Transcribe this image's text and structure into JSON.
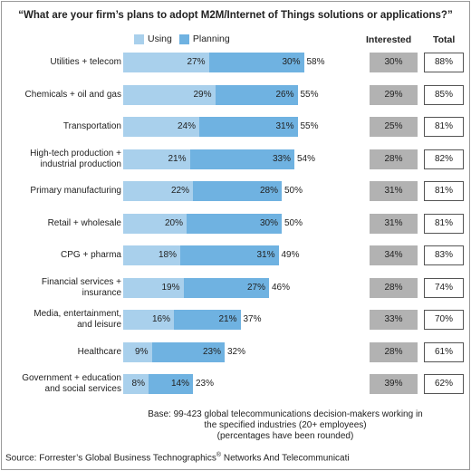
{
  "title": "“What are your firm’s plans to adopt M2M/Internet of Things solutions or applications?”",
  "legend": [
    {
      "label": "Using",
      "color": "#a9d0ec"
    },
    {
      "label": "Planning",
      "color": "#6fb2e1"
    }
  ],
  "columns": {
    "interested": "Interested",
    "total": "Total"
  },
  "chart_data": {
    "type": "bar",
    "stacked": true,
    "orientation": "horizontal",
    "categories": [
      "Utilities + telecom",
      "Chemicals + oil and gas",
      "Transportation",
      "High-tech production + industrial production",
      "Primary manufacturing",
      "Retail + wholesale",
      "CPG + pharma",
      "Financial services + insurance",
      "Media, entertainment, and leisure",
      "Healthcare",
      "Government + education and social services"
    ],
    "series": [
      {
        "name": "Using",
        "values": [
          27,
          29,
          24,
          21,
          22,
          20,
          18,
          19,
          16,
          9,
          8
        ]
      },
      {
        "name": "Planning",
        "values": [
          30,
          26,
          31,
          33,
          28,
          30,
          31,
          27,
          21,
          23,
          14
        ]
      }
    ],
    "sums": [
      58,
      55,
      55,
      54,
      50,
      50,
      49,
      46,
      37,
      32,
      23
    ],
    "interested": [
      30,
      29,
      25,
      28,
      31,
      31,
      34,
      28,
      33,
      28,
      39
    ],
    "total": [
      88,
      85,
      81,
      82,
      81,
      81,
      83,
      74,
      70,
      61,
      62
    ],
    "value_suffix": "%",
    "xlim": [
      0,
      100
    ]
  },
  "category_lines": [
    [
      "Utilities + telecom"
    ],
    [
      "Chemicals + oil and gas"
    ],
    [
      "Transportation"
    ],
    [
      "High-tech production +",
      "industrial production"
    ],
    [
      "Primary manufacturing"
    ],
    [
      "Retail + wholesale"
    ],
    [
      "CPG + pharma"
    ],
    [
      "Financial services +",
      "insurance"
    ],
    [
      "Media, entertainment,",
      "and leisure"
    ],
    [
      "Healthcare"
    ],
    [
      "Government + education",
      "and social services"
    ]
  ],
  "footnote": [
    "Base: 99-423 global telecommunications decision-makers working in",
    "the specified industries (20+ employees)",
    "(percentages have been rounded)"
  ],
  "source": {
    "prefix": "Source: Forrester’s Global Business Technographics",
    "mark": "®",
    "suffix": " Networks And Telecommunicati"
  }
}
